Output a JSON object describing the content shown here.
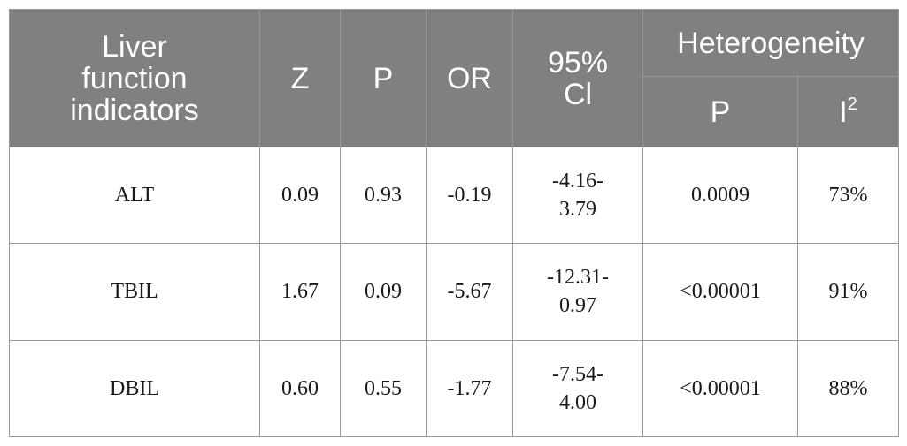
{
  "table": {
    "headers": {
      "indicator": "Liver function indicators",
      "z": "Z",
      "p": "P",
      "or": "OR",
      "ci": "95% Cl",
      "heterogeneity": "Heterogeneity",
      "het_p": "P",
      "het_i_base": "I",
      "het_i_sup": "2"
    },
    "rows": [
      {
        "indicator": "ALT",
        "z": "0.09",
        "p": "0.93",
        "or": "-0.19",
        "ci_top": "-4.16-",
        "ci_bottom": "3.79",
        "het_p": "0.0009",
        "het_i": "73%"
      },
      {
        "indicator": "TBIL",
        "z": "1.67",
        "p": "0.09",
        "or": "-5.67",
        "ci_top": "-12.31-",
        "ci_bottom": "0.97",
        "het_p": "<0.00001",
        "het_i": "91%"
      },
      {
        "indicator": "DBIL",
        "z": "0.60",
        "p": "0.55",
        "or": "-1.77",
        "ci_top": "-7.54-",
        "ci_bottom": "4.00",
        "het_p": "<0.00001",
        "het_i": "88%"
      }
    ]
  }
}
